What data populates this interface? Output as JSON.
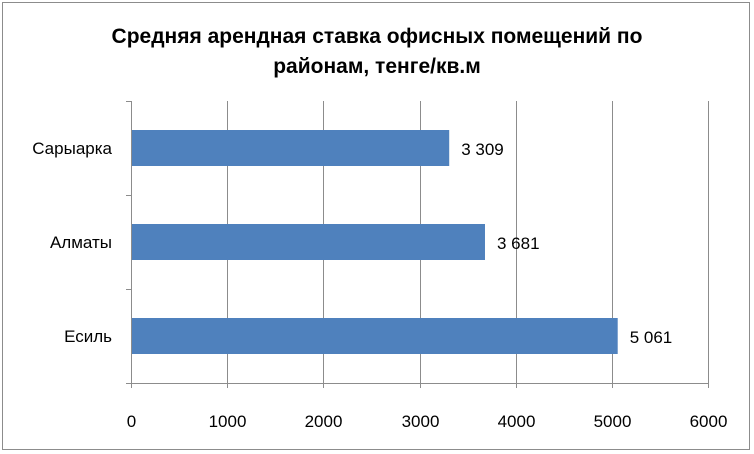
{
  "chart_data": {
    "type": "bar",
    "orientation": "horizontal",
    "title_lines": [
      "Средняя арендная ставка офисных помещений по",
      "районам, тенге/кв.м"
    ],
    "categories": [
      "Сарыарка",
      "Алматы",
      "Есиль"
    ],
    "values": [
      3309,
      3681,
      5061
    ],
    "data_labels": [
      "3 309",
      "3 681",
      "5 061"
    ],
    "xlim": [
      0,
      6000
    ],
    "x_ticks": [
      "0",
      "1000",
      "2000",
      "3000",
      "4000",
      "5000",
      "6000"
    ],
    "grid": true,
    "legend": false,
    "bar_color": "#4f81bd",
    "grid_color": "#8c8c8c"
  }
}
